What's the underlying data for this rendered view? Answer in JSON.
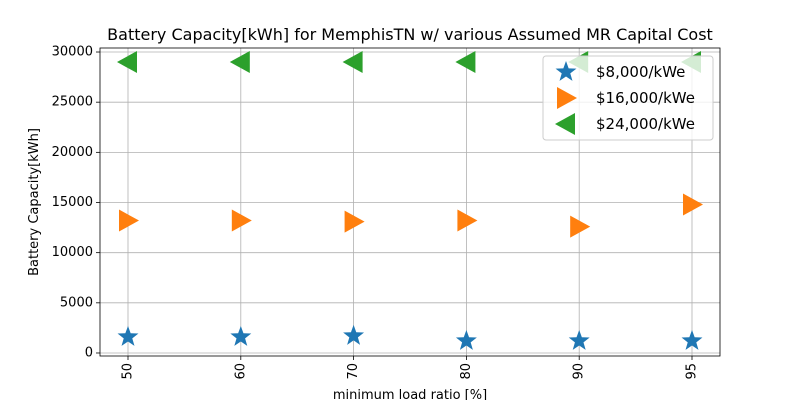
{
  "chart_data": {
    "type": "scatter",
    "title": "Battery Capacity[kWh] for MemphisTN w/ various Assumed MR Capital Cost",
    "xlabel": "minimum load ratio [%]",
    "ylabel": "Battery Capacity[kWh]",
    "categories": [
      "50",
      "60",
      "70",
      "80",
      "90",
      "95"
    ],
    "ylim": [
      -300,
      30400
    ],
    "yticks": [
      0,
      5000,
      10000,
      15000,
      20000,
      25000,
      30000
    ],
    "yticklabels": [
      "0",
      "5000",
      "10000",
      "15000",
      "20000",
      "25000",
      "30000"
    ],
    "grid": true,
    "legend_position": "top-right",
    "series": [
      {
        "name": "$8,000/kWe",
        "marker": "star",
        "color": "#1f77b4",
        "values": [
          1600,
          1600,
          1700,
          1200,
          1200,
          1200
        ]
      },
      {
        "name": "$16,000/kWe",
        "marker": "triangle-right",
        "color": "#ff7f0e",
        "values": [
          13200,
          13200,
          13100,
          13200,
          12600,
          14800
        ]
      },
      {
        "name": "$24,000/kWe",
        "marker": "triangle-left",
        "color": "#2ca02c",
        "values": [
          29000,
          29000,
          29000,
          29000,
          29000,
          29000
        ]
      }
    ]
  }
}
